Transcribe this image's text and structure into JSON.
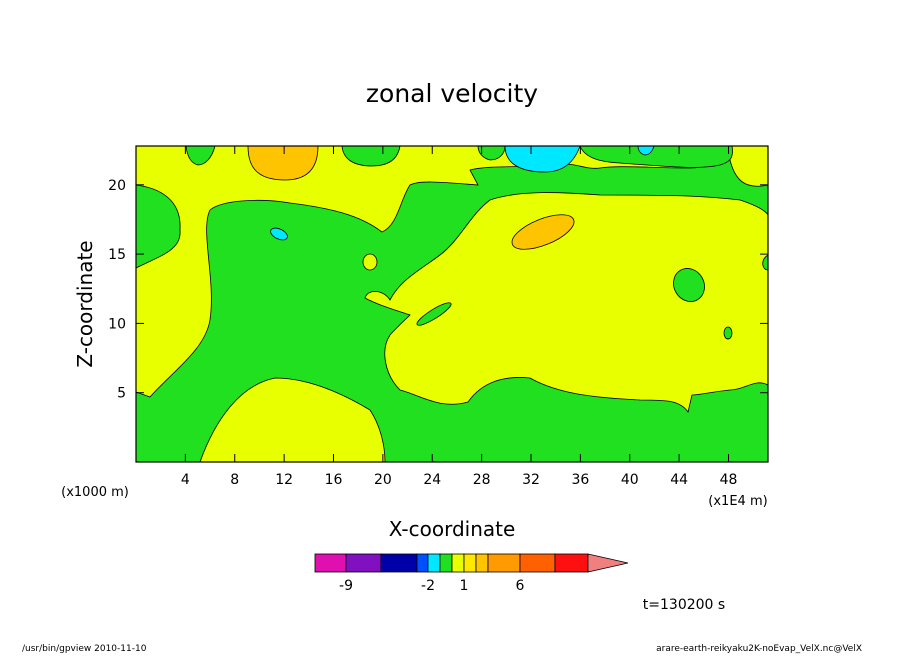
{
  "chart_data": {
    "type": "contour",
    "title": "zonal velocity",
    "x_label": "X-coordinate",
    "y_label": "Z-coordinate",
    "x_unit": "(x1000 m)",
    "x_unit_scaled": "(x1E4 m)",
    "xlim": [
      0,
      51.2
    ],
    "ylim": [
      0,
      22.8
    ],
    "xticks": [
      4,
      8,
      12,
      16,
      20,
      24,
      28,
      32,
      36,
      40,
      44,
      48
    ],
    "yticks": [
      5,
      10,
      15,
      20
    ],
    "colorbar": {
      "levels": [
        -12,
        -9,
        -6,
        -3,
        -2,
        -1,
        0,
        1,
        2,
        3,
        6,
        9,
        12
      ],
      "colors": [
        "#e010b0",
        "#8010c0",
        "#0000a8",
        "#0050ff",
        "#00e8ff",
        "#20e020",
        "#e8ff00",
        "#ffe800",
        "#ffc400",
        "#ff9a00",
        "#ff6000",
        "#ff1010",
        "#f08080",
        "#ffb8c0"
      ],
      "ticks": [
        -9,
        -2,
        1,
        6
      ]
    },
    "annotation": "t=130200 s",
    "footer_left": "/usr/bin/gpview   2010-11-10",
    "footer_right": "arare-earth-reikyaku2K-noEvap_VelX.nc@VelX"
  }
}
